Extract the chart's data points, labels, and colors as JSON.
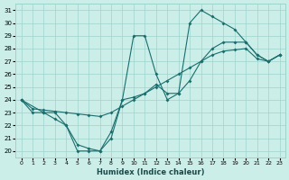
{
  "xlabel": "Humidex (Indice chaleur)",
  "bg_color": "#cceee8",
  "grid_color": "#9dd4cc",
  "line_color": "#1a6e6e",
  "xlim": [
    -0.5,
    23.5
  ],
  "ylim": [
    19.5,
    31.5
  ],
  "xticks": [
    0,
    1,
    2,
    3,
    4,
    5,
    6,
    7,
    8,
    9,
    10,
    11,
    12,
    13,
    14,
    15,
    16,
    17,
    18,
    19,
    20,
    21,
    22,
    23
  ],
  "yticks": [
    20,
    21,
    22,
    23,
    24,
    25,
    26,
    27,
    28,
    29,
    30,
    31
  ],
  "line1_x": [
    0,
    1,
    2,
    3,
    4,
    5,
    6,
    7,
    8,
    9,
    10,
    11,
    12,
    13,
    14,
    15,
    16,
    17,
    18,
    19,
    20,
    21,
    22,
    23
  ],
  "line1_y": [
    24.0,
    23.3,
    23.2,
    23.1,
    23.0,
    22.9,
    22.8,
    22.7,
    23.0,
    23.5,
    24.0,
    24.5,
    25.0,
    25.5,
    26.0,
    26.5,
    27.0,
    27.5,
    27.8,
    27.9,
    28.0,
    27.2,
    27.0,
    27.5
  ],
  "line2_x": [
    0,
    1,
    2,
    3,
    4,
    5,
    6,
    7,
    8,
    9,
    10,
    11,
    12,
    13,
    14,
    15,
    16,
    17,
    18,
    19,
    20,
    21,
    22,
    23
  ],
  "line2_y": [
    24.0,
    23.0,
    23.0,
    22.5,
    22.0,
    20.5,
    20.2,
    20.0,
    21.5,
    24.0,
    24.2,
    24.5,
    25.2,
    24.5,
    24.5,
    25.5,
    27.0,
    28.0,
    28.5,
    28.5,
    28.5,
    27.5,
    27.0,
    27.5
  ],
  "line3_x": [
    0,
    2,
    3,
    4,
    5,
    6,
    7,
    8,
    9,
    10,
    11,
    12,
    13,
    14,
    15,
    16,
    17,
    18,
    19,
    20,
    21,
    22,
    23
  ],
  "line3_y": [
    24.0,
    23.0,
    23.0,
    22.0,
    20.0,
    20.0,
    20.0,
    21.0,
    24.0,
    29.0,
    29.0,
    26.0,
    24.0,
    24.5,
    30.0,
    31.0,
    30.5,
    30.0,
    29.5,
    28.5,
    27.5,
    27.0,
    27.5
  ]
}
